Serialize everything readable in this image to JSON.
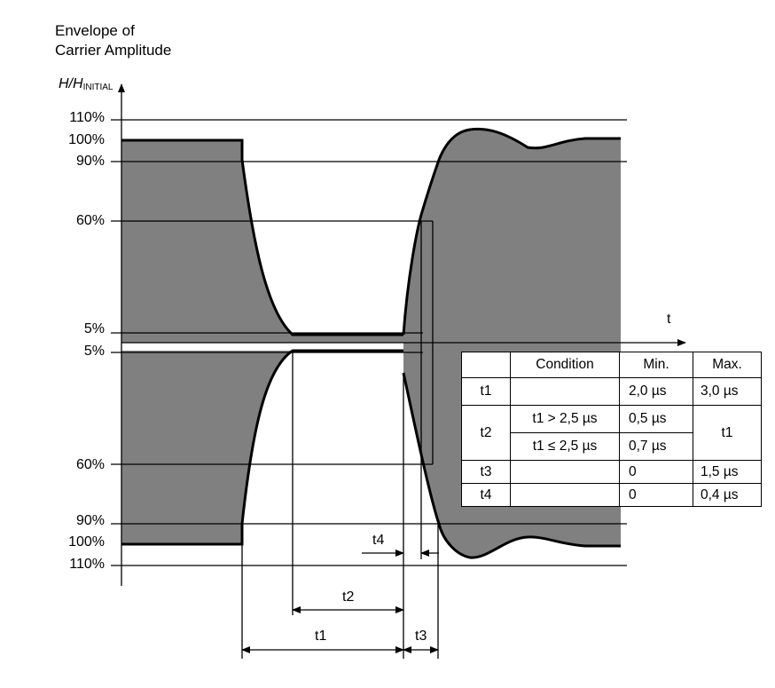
{
  "title": {
    "line1": "Envelope of",
    "line2": "Carrier Amplitude"
  },
  "y_axis": {
    "label_main": "H/H",
    "label_sub": "INITIAL",
    "upper_ticks": [
      "110%",
      "100%",
      "90%",
      "60%",
      "5%"
    ],
    "lower_ticks": [
      "5%",
      "60%",
      "90%",
      "100%",
      "110%"
    ]
  },
  "x_axis": {
    "label": "t"
  },
  "timing_labels": {
    "t1": "t1",
    "t2": "t2",
    "t3": "t3",
    "t4": "t4"
  },
  "colors": {
    "envelope_fill": "#808080",
    "line": "#000000"
  },
  "table": {
    "headers": [
      "",
      "Condition",
      "Min.",
      "Max."
    ],
    "rows": {
      "t1": {
        "name": "t1",
        "condition": "",
        "min": "2,0 µs",
        "max": "3,0 µs"
      },
      "t2": {
        "name": "t2",
        "condition_a": "t1 > 2,5 µs",
        "min_a": "0,5 µs",
        "condition_b": "t1 ≤ 2,5 µs",
        "min_b": "0,7 µs",
        "max": "t1"
      },
      "t3": {
        "name": "t3",
        "condition": "",
        "min": "0",
        "max": "1,5 µs"
      },
      "t4": {
        "name": "t4",
        "condition": "",
        "min": "0",
        "max": "0,4 µs"
      }
    }
  }
}
